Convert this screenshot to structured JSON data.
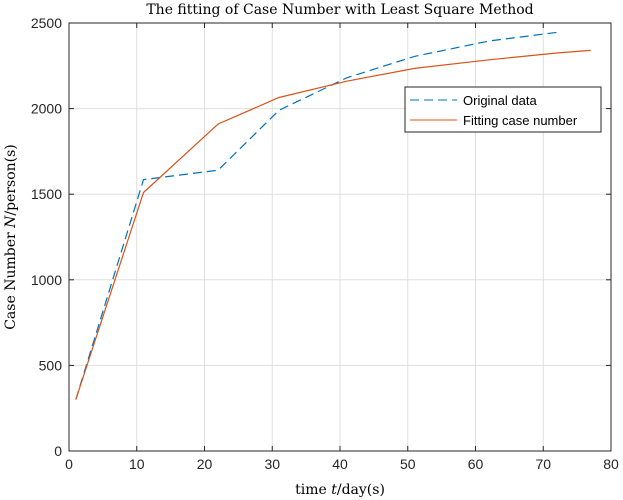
{
  "chart_data": {
    "type": "line",
    "title": "The fitting of Case Number with Least Square Method",
    "xlabel_prefix": "time ",
    "xlabel_var": "t",
    "xlabel_suffix": "/day(s)",
    "ylabel_prefix": "Case Number ",
    "ylabel_var": "N",
    "ylabel_suffix": "/person(s)",
    "xlim": [
      0,
      80
    ],
    "ylim": [
      0,
      2500
    ],
    "xticks": [
      0,
      10,
      20,
      30,
      40,
      50,
      60,
      70,
      80
    ],
    "yticks": [
      0,
      500,
      1000,
      1500,
      2000,
      2500
    ],
    "grid": true,
    "legend_position": "top-right",
    "series": [
      {
        "name": "Original data",
        "style": "dashed",
        "color": "#0072BD",
        "x": [
          1,
          11,
          22,
          31,
          41,
          51,
          62,
          72
        ],
        "y": [
          300,
          1585,
          1640,
          1990,
          2180,
          2305,
          2395,
          2445
        ]
      },
      {
        "name": "Fitting case number",
        "style": "solid",
        "color": "#D95319",
        "x": [
          1,
          11,
          22,
          31,
          41,
          51,
          62,
          72,
          77
        ],
        "y": [
          300,
          1510,
          1910,
          2065,
          2160,
          2235,
          2285,
          2325,
          2340
        ]
      }
    ]
  }
}
